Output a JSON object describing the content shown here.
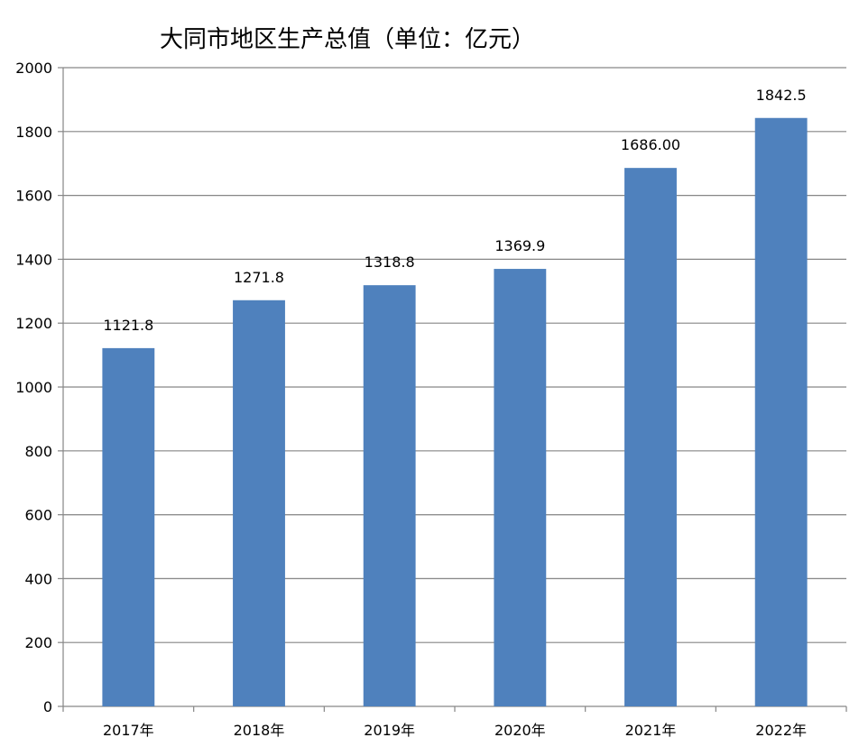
{
  "chart_data": {
    "type": "bar",
    "title": "大同市地区生产总值（单位：亿元）",
    "xlabel": "",
    "ylabel": "",
    "categories": [
      "2017年",
      "2018年",
      "2019年",
      "2020年",
      "2021年",
      "2022年"
    ],
    "values": [
      1121.8,
      1271.8,
      1318.8,
      1369.9,
      1686.0,
      1842.5
    ],
    "data_labels": [
      "1121.8",
      "1271.8",
      "1318.8",
      "1369.9",
      "1686.00",
      "1842.5"
    ],
    "ylim": [
      0,
      2000
    ],
    "yticks": [
      0,
      200,
      400,
      600,
      800,
      1000,
      1200,
      1400,
      1600,
      1800,
      2000
    ],
    "grid": true,
    "legend": "none",
    "bar_color": "#4f81bd",
    "gridline_color": "#868686"
  }
}
